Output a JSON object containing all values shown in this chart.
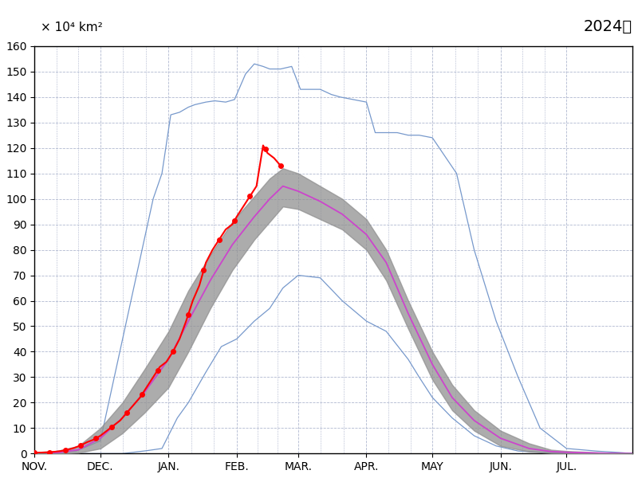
{
  "title": "2024年",
  "ylabel": "× 10⁴ km²",
  "ylim": [
    0,
    160
  ],
  "yticks": [
    0,
    10,
    20,
    30,
    40,
    50,
    60,
    70,
    80,
    90,
    100,
    110,
    120,
    130,
    140,
    150,
    160
  ],
  "month_labels": [
    "NOV.",
    "DEC.",
    "JAN.",
    "FEB.",
    "MAR.",
    "APR.",
    "MAY",
    "JUN.",
    "JUL."
  ],
  "month_positions": [
    0,
    30,
    61,
    92,
    120,
    151,
    181,
    212,
    242
  ],
  "total_days": 273,
  "xlim_max": 272,
  "background_color": "#ffffff",
  "grid_color": "#b0b8d0",
  "shade_color": "#909090",
  "mean_color": "#cc44cc",
  "minmax_color": "#7799cc",
  "current_color": "#ff0000",
  "max_curve_x": [
    0,
    19,
    30,
    54,
    58,
    62,
    66,
    70,
    73,
    78,
    82,
    87,
    91,
    96,
    100,
    104,
    107,
    112,
    117,
    121,
    126,
    130,
    135,
    139,
    145,
    151,
    155,
    160,
    165,
    170,
    175,
    181,
    192,
    200,
    210,
    220,
    230,
    242,
    255,
    265,
    272
  ],
  "max_curve_y": [
    0,
    1,
    5,
    100,
    110,
    133,
    134,
    136,
    137,
    138,
    138.5,
    138,
    139,
    149,
    153,
    152,
    151,
    151,
    152,
    143,
    143,
    143,
    141,
    140,
    139,
    138,
    126,
    126,
    126,
    125,
    125,
    124,
    110,
    80,
    52,
    30,
    10,
    2,
    1,
    0.5,
    0
  ],
  "min_curve_x": [
    0,
    30,
    40,
    50,
    58,
    65,
    70,
    78,
    85,
    92,
    100,
    107,
    113,
    120,
    130,
    140,
    151,
    160,
    170,
    175,
    181,
    190,
    200,
    210,
    220,
    230,
    242,
    255,
    265,
    272
  ],
  "min_curve_y": [
    0,
    0,
    0,
    1,
    2,
    14,
    20,
    32,
    42,
    45,
    52,
    57,
    65,
    70,
    69,
    60,
    52,
    48,
    37,
    30,
    22,
    14,
    7,
    3,
    1,
    0.5,
    0.2,
    0.1,
    0,
    0
  ],
  "mean_curve_x": [
    0,
    10,
    20,
    30,
    40,
    50,
    61,
    70,
    80,
    90,
    100,
    107,
    113,
    120,
    130,
    140,
    151,
    160,
    170,
    181,
    190,
    200,
    212,
    225,
    235,
    242,
    255,
    265,
    272
  ],
  "mean_curve_y": [
    0,
    0.3,
    1.5,
    6,
    14,
    24,
    37,
    52,
    68,
    82,
    93,
    100,
    105,
    103,
    99,
    94,
    86,
    75,
    55,
    35,
    22,
    13,
    6,
    2,
    0.8,
    0.5,
    0.2,
    0.1,
    0
  ],
  "upper_std_x": [
    0,
    10,
    20,
    30,
    40,
    50,
    61,
    70,
    80,
    90,
    100,
    107,
    113,
    120,
    130,
    140,
    151,
    160,
    170,
    181,
    190,
    200,
    212,
    225,
    235,
    242,
    255,
    265,
    272
  ],
  "upper_std_y": [
    0.5,
    1,
    3,
    10,
    20,
    33,
    48,
    64,
    78,
    91,
    101,
    108,
    112,
    110,
    105,
    100,
    92,
    80,
    60,
    40,
    27,
    17,
    9,
    4,
    1.5,
    1,
    0.5,
    0.2,
    0.1
  ],
  "lower_std_x": [
    0,
    10,
    20,
    30,
    40,
    50,
    61,
    70,
    80,
    90,
    100,
    107,
    113,
    120,
    130,
    140,
    151,
    160,
    170,
    181,
    190,
    200,
    212,
    225,
    235,
    242,
    255,
    265,
    272
  ],
  "lower_std_y": [
    0,
    0,
    0.3,
    2,
    8,
    16,
    26,
    40,
    57,
    72,
    84,
    91,
    97,
    96,
    92,
    88,
    80,
    68,
    49,
    29,
    17,
    9,
    3,
    0.8,
    0.2,
    0.1,
    0,
    0,
    0
  ],
  "current_x": [
    0,
    3,
    6,
    9,
    12,
    15,
    18,
    21,
    24,
    27,
    30,
    33,
    36,
    39,
    42,
    45,
    48,
    51,
    54,
    57,
    60,
    63,
    66,
    69,
    72,
    75,
    78,
    81,
    84,
    87,
    90,
    92,
    95,
    98,
    101,
    104,
    106,
    109,
    112
  ],
  "current_y": [
    0.3,
    0.4,
    0.5,
    0.7,
    1.0,
    1.5,
    2.2,
    3.2,
    4.5,
    5.5,
    7,
    9,
    11,
    13,
    16,
    19,
    22,
    26,
    30,
    34,
    36,
    40,
    45,
    52,
    60,
    66,
    75,
    80,
    84,
    88,
    90,
    93,
    97,
    101,
    105,
    121,
    118,
    116,
    113
  ]
}
